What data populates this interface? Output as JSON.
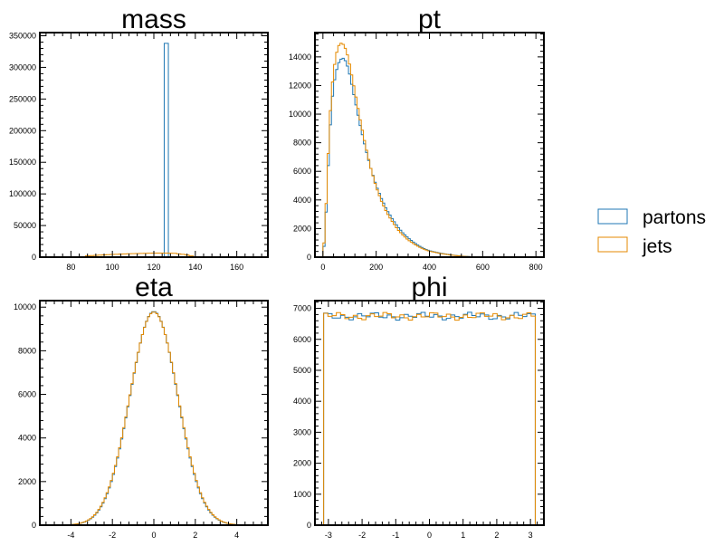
{
  "colors": {
    "partons": "#1f77b4",
    "jets": "#e58a00",
    "axis": "#000000",
    "background": "#ffffff"
  },
  "legend": {
    "placement": "right",
    "entries": [
      {
        "label": "partons",
        "color": "#1f77b4"
      },
      {
        "label": "jets",
        "color": "#e58a00"
      }
    ]
  },
  "chart_data": [
    {
      "name": "mass",
      "type": "histogram",
      "title": "mass",
      "xlim": [
        65,
        175
      ],
      "ylim": [
        0,
        355000
      ],
      "grid": false,
      "xticks": [
        80,
        100,
        120,
        140,
        160
      ],
      "yticks": [
        0,
        50000,
        100000,
        150000,
        200000,
        250000,
        300000,
        350000
      ],
      "bins": {
        "start": 65,
        "width": 2,
        "count": 55
      },
      "series": [
        {
          "name": "partons",
          "spikes": [
            {
              "x0": 124,
              "x1": 126,
              "y": 338000
            }
          ]
        },
        {
          "name": "jets",
          "points": [
            [
              86,
              0
            ],
            [
              88,
              2000
            ],
            [
              95,
              3500
            ],
            [
              105,
              5000
            ],
            [
              115,
              6000
            ],
            [
              120,
              6500
            ],
            [
              125,
              6500
            ],
            [
              130,
              6000
            ],
            [
              135,
              4000
            ],
            [
              138,
              2000
            ],
            [
              140,
              0
            ]
          ]
        }
      ]
    },
    {
      "name": "pt",
      "type": "histogram",
      "title": "pt",
      "xlim": [
        -30,
        830
      ],
      "ylim": [
        0,
        15700
      ],
      "grid": false,
      "xticks": [
        0,
        200,
        400,
        600,
        800
      ],
      "yticks": [
        0,
        2000,
        4000,
        6000,
        8000,
        10000,
        12000,
        14000
      ],
      "bins": {
        "start": 0,
        "width": 8,
        "count": 100
      },
      "series": [
        {
          "name": "partons",
          "points": [
            [
              0,
              0
            ],
            [
              8,
              1500
            ],
            [
              16,
              4800
            ],
            [
              24,
              8000
            ],
            [
              32,
              10500
            ],
            [
              40,
              12000
            ],
            [
              50,
              13000
            ],
            [
              60,
              13600
            ],
            [
              70,
              13900
            ],
            [
              80,
              13900
            ],
            [
              90,
              13500
            ],
            [
              100,
              12800
            ],
            [
              120,
              11000
            ],
            [
              140,
              9200
            ],
            [
              160,
              7600
            ],
            [
              180,
              6200
            ],
            [
              200,
              5000
            ],
            [
              220,
              4100
            ],
            [
              240,
              3300
            ],
            [
              260,
              2700
            ],
            [
              280,
              2150
            ],
            [
              300,
              1700
            ],
            [
              320,
              1350
            ],
            [
              340,
              1050
            ],
            [
              360,
              800
            ],
            [
              380,
              600
            ],
            [
              400,
              450
            ],
            [
              440,
              280
            ],
            [
              480,
              160
            ],
            [
              520,
              80
            ],
            [
              560,
              30
            ],
            [
              600,
              10
            ],
            [
              640,
              0
            ]
          ]
        },
        {
          "name": "jets",
          "points": [
            [
              0,
              0
            ],
            [
              8,
              2000
            ],
            [
              16,
              5500
            ],
            [
              24,
              9000
            ],
            [
              32,
              11500
            ],
            [
              40,
              13000
            ],
            [
              50,
              14200
            ],
            [
              60,
              14800
            ],
            [
              70,
              15000
            ],
            [
              80,
              14800
            ],
            [
              90,
              14300
            ],
            [
              100,
              13500
            ],
            [
              120,
              11600
            ],
            [
              140,
              9600
            ],
            [
              160,
              7800
            ],
            [
              180,
              6200
            ],
            [
              200,
              4900
            ],
            [
              220,
              3900
            ],
            [
              240,
              3100
            ],
            [
              260,
              2500
            ],
            [
              280,
              1950
            ],
            [
              300,
              1550
            ],
            [
              320,
              1200
            ],
            [
              340,
              950
            ],
            [
              360,
              720
            ],
            [
              380,
              550
            ],
            [
              400,
              420
            ],
            [
              440,
              260
            ],
            [
              480,
              150
            ],
            [
              520,
              70
            ],
            [
              560,
              30
            ],
            [
              600,
              10
            ],
            [
              640,
              0
            ]
          ]
        }
      ]
    },
    {
      "name": "eta",
      "type": "histogram",
      "title": "eta",
      "xlim": [
        -5.5,
        5.5
      ],
      "ylim": [
        0,
        10300
      ],
      "grid": false,
      "xticks": [
        -4,
        -2,
        0,
        2,
        4
      ],
      "yticks": [
        0,
        2000,
        4000,
        6000,
        8000,
        10000
      ],
      "bins": {
        "start": -4.5,
        "width": 0.1,
        "count": 90
      },
      "series": [
        {
          "name": "partons",
          "gauss": {
            "amp": 9800,
            "mean": 0,
            "sigma": 1.15
          }
        },
        {
          "name": "jets",
          "gauss": {
            "amp": 9780,
            "mean": 0,
            "sigma": 1.16
          }
        }
      ]
    },
    {
      "name": "phi",
      "type": "histogram",
      "title": "phi",
      "xlim": [
        -3.4,
        3.4
      ],
      "ylim": [
        0,
        7250
      ],
      "grid": false,
      "xticks": [
        -3,
        -2,
        -1,
        0,
        1,
        2,
        3
      ],
      "yticks": [
        0,
        1000,
        2000,
        3000,
        4000,
        5000,
        6000,
        7000
      ],
      "bins": {
        "start": -3.1416,
        "width": 0.1257,
        "count": 50
      },
      "series": [
        {
          "name": "partons",
          "flat": {
            "level": 6750,
            "jitter": 110
          }
        },
        {
          "name": "jets",
          "flat": {
            "level": 6750,
            "jitter": 110
          }
        }
      ]
    }
  ]
}
